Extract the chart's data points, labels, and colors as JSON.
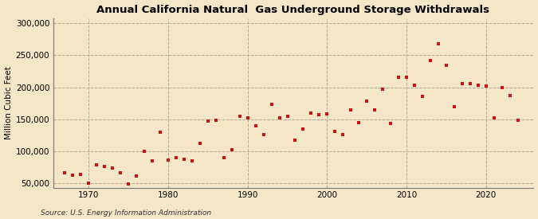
{
  "title": "Annual California Natural  Gas Underground Storage Withdrawals",
  "ylabel": "Million Cubic Feet",
  "source": "Source: U.S. Energy Information Administration",
  "background_color": "#f5e6c8",
  "plot_bg_color": "#f5e6c8",
  "dot_color": "#cc1111",
  "xlim": [
    1965.5,
    2026
  ],
  "ylim": [
    43000,
    308000
  ],
  "xticks": [
    1970,
    1980,
    1990,
    2000,
    2010,
    2020
  ],
  "yticks": [
    50000,
    100000,
    150000,
    200000,
    250000,
    300000
  ],
  "years": [
    1967,
    1968,
    1969,
    1970,
    1971,
    1972,
    1973,
    1974,
    1975,
    1976,
    1977,
    1978,
    1979,
    1980,
    1981,
    1982,
    1983,
    1984,
    1985,
    1986,
    1987,
    1988,
    1989,
    1990,
    1991,
    1992,
    1993,
    1994,
    1995,
    1996,
    1997,
    1998,
    1999,
    2000,
    2001,
    2002,
    2003,
    2004,
    2005,
    2006,
    2007,
    2008,
    2009,
    2010,
    2011,
    2012,
    2013,
    2014,
    2015,
    2016,
    2017,
    2018,
    2019,
    2020,
    2021,
    2022,
    2023,
    2024
  ],
  "values": [
    67000,
    63000,
    64000,
    51000,
    79000,
    76000,
    74000,
    66000,
    49000,
    62000,
    100000,
    85000,
    130000,
    87000,
    90000,
    88000,
    85000,
    113000,
    147000,
    148000,
    90000,
    103000,
    155000,
    152000,
    140000,
    126000,
    173000,
    152000,
    155000,
    117000,
    135000,
    160000,
    157000,
    158000,
    131000,
    126000,
    165000,
    145000,
    178000,
    165000,
    197000,
    143000,
    215000,
    215000,
    203000,
    186000,
    241000,
    268000,
    234000,
    170000,
    205000,
    205000,
    203000,
    202000,
    152000,
    200000,
    187000,
    149000
  ]
}
